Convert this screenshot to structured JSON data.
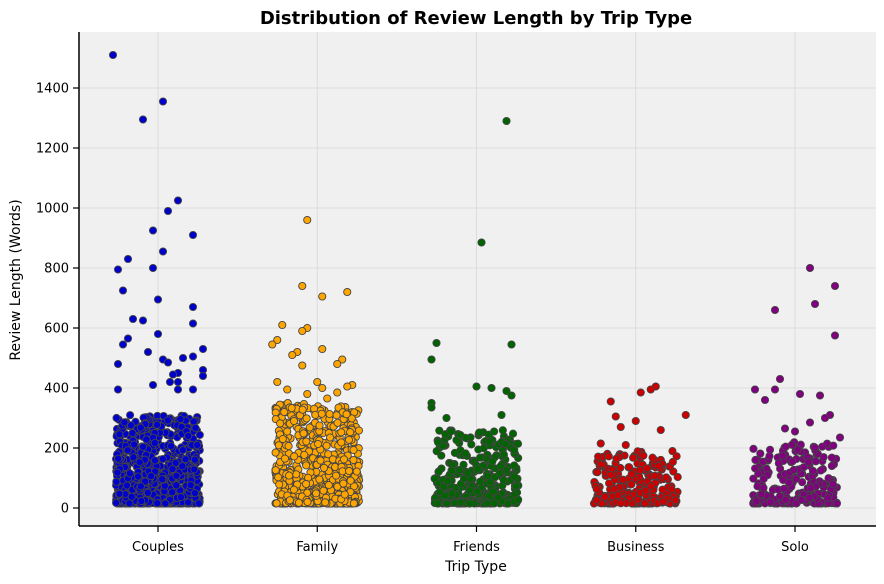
{
  "chart_data": {
    "type": "scatter",
    "title": "Distribution of Review Length by Trip Type",
    "xlabel": "Trip Type",
    "ylabel": "Review Length (Words)",
    "categories": [
      "Couples",
      "Family",
      "Friends",
      "Business",
      "Solo"
    ],
    "yticks": [
      0,
      200,
      400,
      600,
      800,
      1000,
      1200,
      1400
    ],
    "ylim": [
      -60,
      1580
    ],
    "grid": true,
    "legend": "none",
    "series": [
      {
        "category": "Couples",
        "color": "#0000cd",
        "points": [
          [
            -0.45,
            1510
          ],
          [
            0.05,
            1355
          ],
          [
            -0.15,
            1295
          ],
          [
            0.2,
            1025
          ],
          [
            0.1,
            990
          ],
          [
            -0.05,
            925
          ],
          [
            0.35,
            910
          ],
          [
            0.05,
            855
          ],
          [
            -0.3,
            830
          ],
          [
            -0.4,
            795
          ],
          [
            -0.05,
            800
          ],
          [
            -0.35,
            725
          ],
          [
            0.0,
            695
          ],
          [
            0.35,
            670
          ],
          [
            -0.25,
            630
          ],
          [
            -0.15,
            625
          ],
          [
            0.35,
            615
          ],
          [
            0.0,
            580
          ],
          [
            -0.3,
            565
          ],
          [
            -0.35,
            545
          ],
          [
            0.45,
            530
          ],
          [
            -0.1,
            520
          ],
          [
            0.05,
            495
          ],
          [
            0.35,
            505
          ],
          [
            0.25,
            500
          ],
          [
            -0.4,
            480
          ],
          [
            0.1,
            485
          ],
          [
            0.45,
            460
          ],
          [
            0.2,
            450
          ],
          [
            0.15,
            445
          ],
          [
            0.45,
            440
          ],
          [
            0.12,
            420
          ],
          [
            0.2,
            420
          ],
          [
            -0.05,
            410
          ],
          [
            0.2,
            395
          ],
          [
            0.35,
            395
          ],
          [
            -0.4,
            395
          ]
        ],
        "dense": {
          "count": 900,
          "range": [
            15,
            310
          ]
        }
      },
      {
        "category": "Family",
        "color": "#ffa500",
        "points": [
          [
            -0.1,
            960
          ],
          [
            -0.15,
            740
          ],
          [
            0.05,
            705
          ],
          [
            0.3,
            720
          ],
          [
            -0.35,
            610
          ],
          [
            -0.1,
            600
          ],
          [
            -0.15,
            590
          ],
          [
            -0.4,
            560
          ],
          [
            -0.45,
            545
          ],
          [
            -0.2,
            520
          ],
          [
            -0.25,
            510
          ],
          [
            0.05,
            530
          ],
          [
            0.25,
            495
          ],
          [
            0.2,
            480
          ],
          [
            -0.15,
            475
          ],
          [
            -0.4,
            420
          ],
          [
            0.0,
            420
          ],
          [
            0.35,
            410
          ],
          [
            -0.3,
            395
          ],
          [
            0.05,
            400
          ],
          [
            0.3,
            405
          ],
          [
            -0.1,
            380
          ],
          [
            0.2,
            385
          ],
          [
            0.1,
            365
          ]
        ],
        "dense": {
          "count": 700,
          "range": [
            15,
            350
          ]
        }
      },
      {
        "category": "Friends",
        "color": "#006400",
        "points": [
          [
            0.3,
            1290
          ],
          [
            0.05,
            885
          ],
          [
            0.35,
            545
          ],
          [
            -0.45,
            495
          ],
          [
            -0.4,
            550
          ],
          [
            0.0,
            405
          ],
          [
            0.15,
            400
          ],
          [
            0.35,
            375
          ],
          [
            0.3,
            390
          ],
          [
            -0.45,
            350
          ],
          [
            -0.45,
            335
          ],
          [
            0.25,
            310
          ],
          [
            -0.3,
            300
          ]
        ],
        "dense": {
          "count": 380,
          "range": [
            15,
            260
          ]
        }
      },
      {
        "category": "Business",
        "color": "#cc0000",
        "points": [
          [
            0.2,
            405
          ],
          [
            0.15,
            395
          ],
          [
            0.05,
            385
          ],
          [
            -0.25,
            355
          ],
          [
            0.5,
            310
          ],
          [
            -0.2,
            305
          ],
          [
            0.0,
            290
          ],
          [
            -0.15,
            270
          ],
          [
            0.25,
            260
          ],
          [
            -0.35,
            215
          ],
          [
            -0.1,
            210
          ]
        ],
        "dense": {
          "count": 260,
          "range": [
            15,
            190
          ]
        }
      },
      {
        "category": "Solo",
        "color": "#800080",
        "points": [
          [
            0.15,
            800
          ],
          [
            0.4,
            740
          ],
          [
            0.2,
            680
          ],
          [
            -0.2,
            660
          ],
          [
            0.4,
            575
          ],
          [
            -0.15,
            430
          ],
          [
            -0.4,
            395
          ],
          [
            -0.2,
            395
          ],
          [
            0.05,
            380
          ],
          [
            0.25,
            375
          ],
          [
            0.35,
            310
          ],
          [
            -0.3,
            360
          ],
          [
            0.3,
            300
          ],
          [
            0.15,
            285
          ],
          [
            0.45,
            235
          ],
          [
            0.0,
            255
          ],
          [
            -0.1,
            265
          ]
        ],
        "dense": {
          "count": 240,
          "range": [
            15,
            220
          ]
        }
      }
    ]
  }
}
